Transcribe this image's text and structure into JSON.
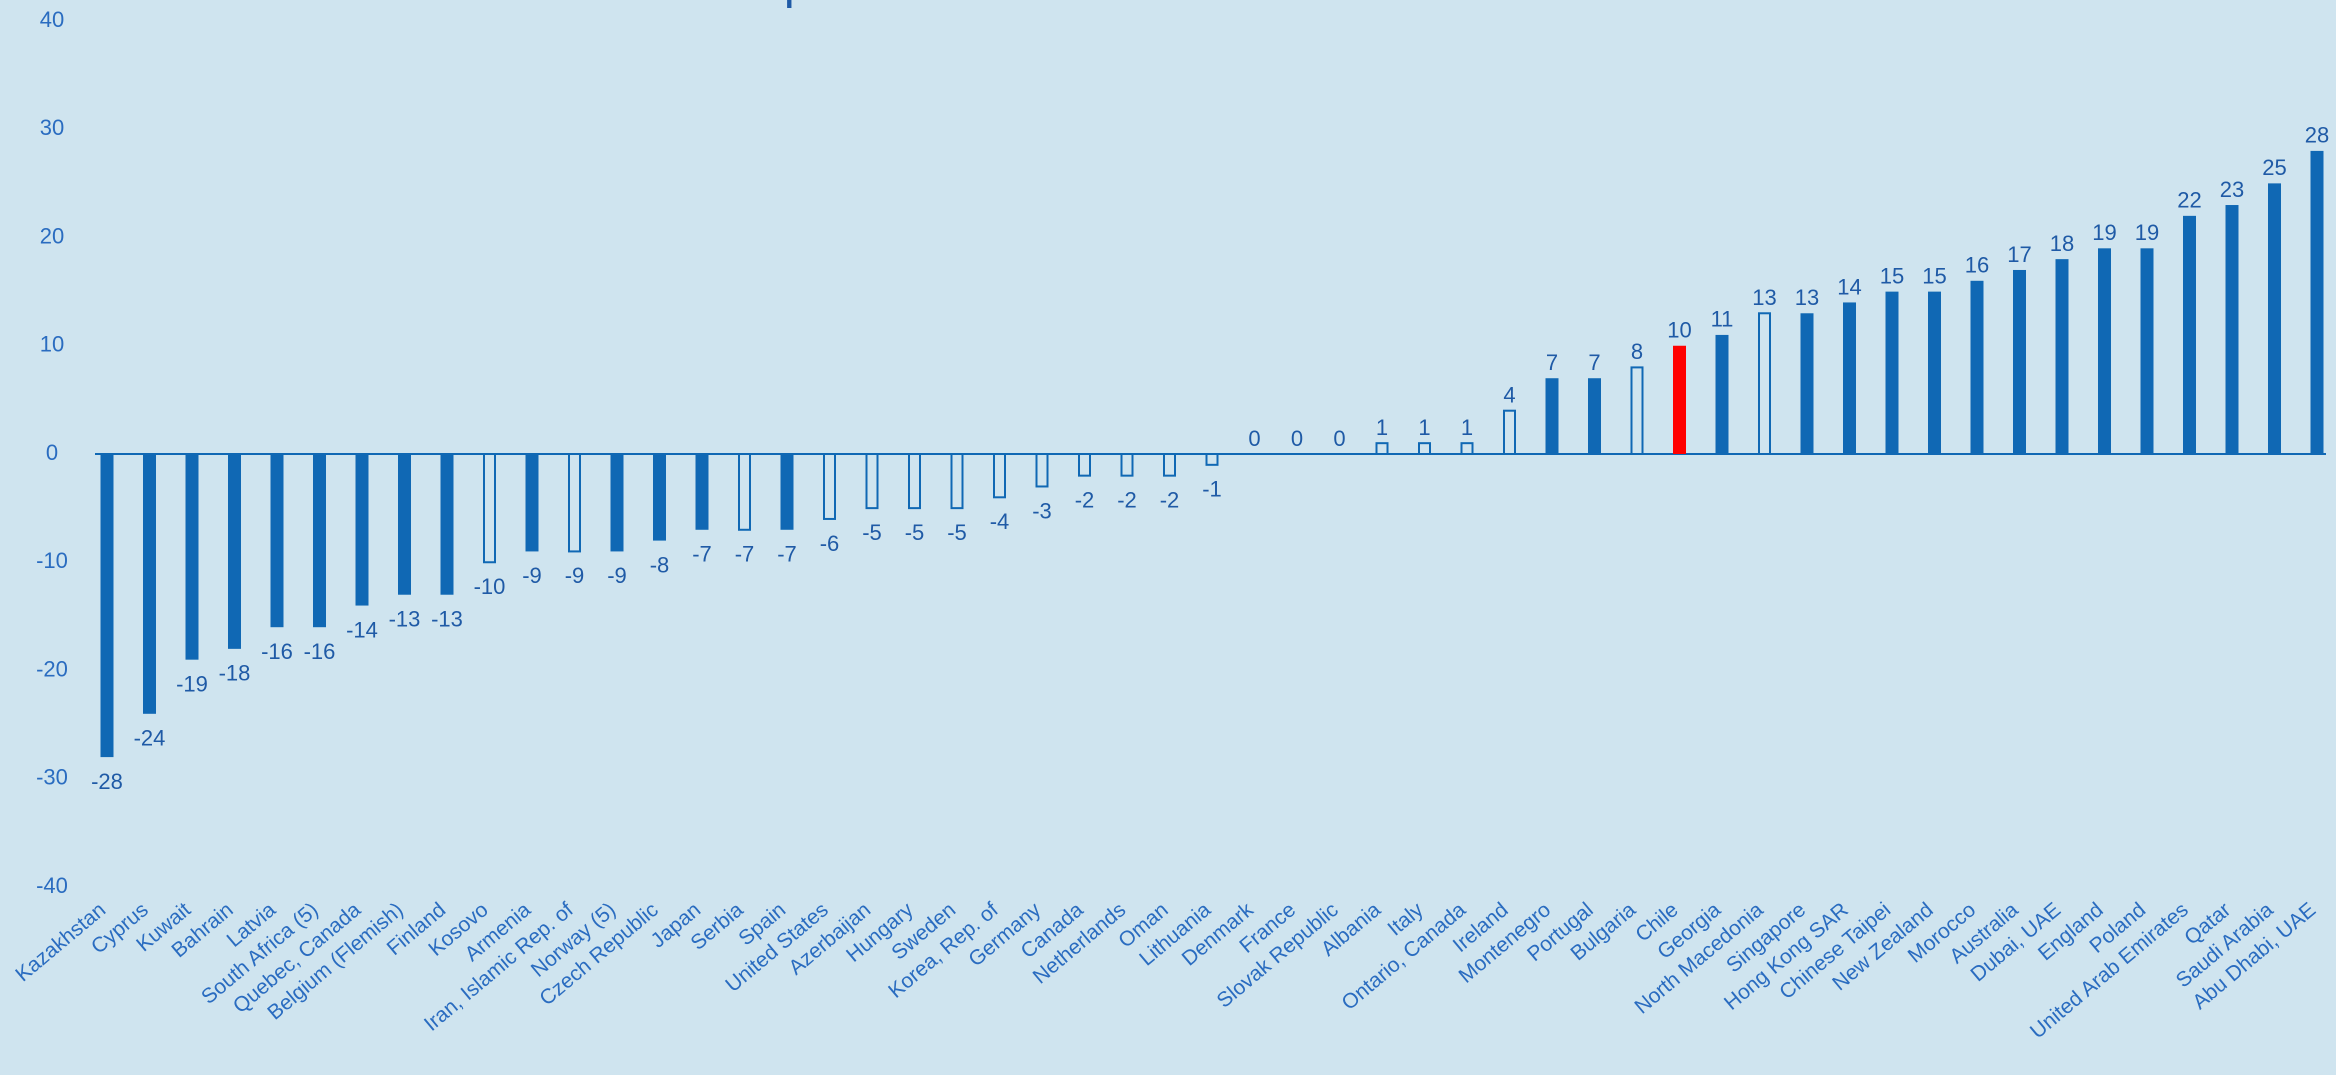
{
  "chart_data": {
    "type": "bar",
    "title": "mantiene sus resultados respecto a la medición anterior.",
    "categories": [
      "Kazakhstan",
      "Cyprus",
      "Kuwait",
      "Bahrain",
      "Latvia",
      "South Africa (5)",
      "Quebec, Canada",
      "Belgium (Flemish)",
      "Finland",
      "Kosovo",
      "Armenia",
      "Iran, Islamic Rep. of",
      "Norway (5)",
      "Czech Republic",
      "Japan",
      "Serbia",
      "Spain",
      "United States",
      "Azerbaijan",
      "Hungary",
      "Sweden",
      "Korea, Rep. of",
      "Germany",
      "Canada",
      "Netherlands",
      "Oman",
      "Lithuania",
      "Denmark",
      "France",
      "Slovak Republic",
      "Albania",
      "Italy",
      "Ontario, Canada",
      "Ireland",
      "Montenegro",
      "Portugal",
      "Bulgaria",
      "Chile",
      "Georgia",
      "North Macedonia",
      "Singapore",
      "Hong Kong SAR",
      "Chinese Taipei",
      "New Zealand",
      "Morocco",
      "Australia",
      "Dubai, UAE",
      "England",
      "Poland",
      "United Arab Emirates",
      "Qatar",
      "Saudi Arabia",
      "Abu Dhabi, UAE"
    ],
    "values": [
      -28,
      -24,
      -19,
      -18,
      -16,
      -16,
      -14,
      -13,
      -13,
      -10,
      -9,
      -9,
      -9,
      -8,
      -7,
      -7,
      -7,
      -6,
      -5,
      -5,
      -5,
      -4,
      -3,
      -2,
      -2,
      -2,
      -1,
      0,
      0,
      0,
      1,
      1,
      1,
      4,
      7,
      7,
      8,
      10,
      11,
      13,
      13,
      14,
      15,
      15,
      16,
      17,
      18,
      19,
      19,
      22,
      23,
      25,
      28
    ],
    "color": "#1068b4",
    "highlight": {
      "index": 37,
      "color": "#ff0000"
    },
    "outline": [
      false,
      false,
      false,
      false,
      false,
      false,
      false,
      false,
      false,
      true,
      false,
      true,
      false,
      false,
      false,
      true,
      false,
      true,
      true,
      true,
      true,
      true,
      true,
      true,
      true,
      true,
      true,
      true,
      true,
      true,
      true,
      true,
      true,
      true,
      false,
      false,
      true,
      false,
      false,
      true,
      false,
      false,
      false,
      false,
      false,
      false,
      false,
      false,
      false,
      false,
      false,
      false,
      false
    ],
    "ylim": [
      -40,
      40
    ],
    "yticks": [
      -40,
      -30,
      -20,
      -10,
      0,
      10,
      20,
      30,
      40
    ],
    "grid": false
  }
}
